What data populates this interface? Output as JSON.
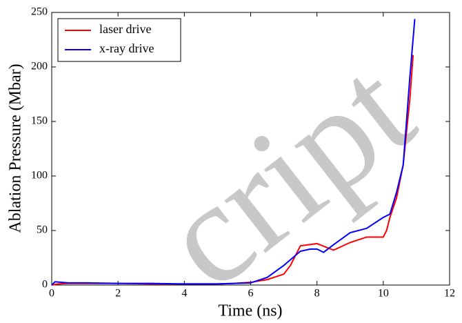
{
  "chart_data": {
    "type": "line",
    "xlabel": "Time (ns)",
    "ylabel": "Ablation Pressure (Mbar)",
    "watermark": "cript",
    "xlim": [
      0,
      12
    ],
    "xticks": [
      0,
      2,
      4,
      6,
      8,
      10,
      12
    ],
    "ylim": [
      0,
      250
    ],
    "yticks": [
      0,
      50,
      100,
      150,
      200,
      250
    ],
    "grid": false,
    "legend": "upper-left",
    "series": [
      {
        "name": "laser drive",
        "color": "#ff0000",
        "x": [
          0,
          0.2,
          0.5,
          1,
          2,
          3,
          4,
          5,
          5.5,
          6,
          6.5,
          7,
          7.2,
          7.5,
          8,
          8.5,
          9,
          9.5,
          10,
          10.1,
          10.2,
          10.4,
          10.6,
          10.8,
          10.9
        ],
        "values": [
          0,
          1,
          1.5,
          1.5,
          1.5,
          1,
          1,
          1,
          1.5,
          2.5,
          5,
          10,
          18,
          36,
          38,
          32,
          39,
          44,
          44,
          50,
          62,
          80,
          110,
          170,
          211
        ]
      },
      {
        "name": "x-ray drive",
        "color": "#0000ff",
        "x": [
          0,
          0.1,
          0.5,
          1,
          2,
          3,
          4,
          5,
          5.5,
          6,
          6.2,
          6.5,
          7,
          7.5,
          7.8,
          8,
          8.2,
          8.5,
          9,
          9.5,
          10,
          10.2,
          10.4,
          10.6,
          10.8,
          10.95
        ],
        "values": [
          0,
          3,
          2,
          2,
          1.5,
          1.5,
          1,
          1,
          1.5,
          2,
          4,
          7,
          18,
          31,
          33,
          33,
          30,
          37,
          48,
          52,
          62,
          65,
          85,
          110,
          190,
          244
        ]
      }
    ]
  }
}
